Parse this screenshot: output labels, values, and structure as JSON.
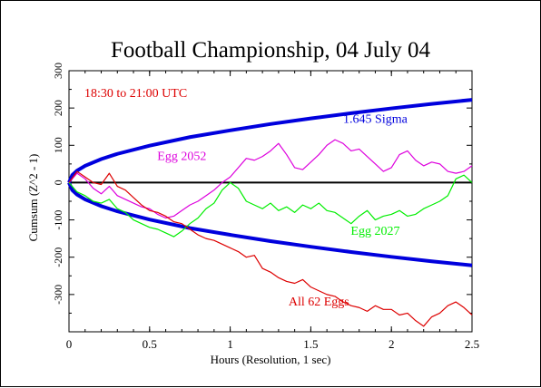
{
  "chart_data": {
    "type": "line",
    "title": "Football Championship, 04 July 04",
    "subtitle": "18:30 to 21:00 UTC",
    "xlabel": "Hours (Resolution, 1 sec)",
    "ylabel": "Cumsum (Z^2 - 1)",
    "xlim": [
      0,
      2.5
    ],
    "ylim": [
      -400,
      300
    ],
    "x_ticks": [
      "0",
      "0.5",
      "1",
      "1.5",
      "2",
      "2.5"
    ],
    "y_ticks": [
      "300",
      "200",
      "100",
      "0",
      "-100",
      "-200",
      "-300"
    ],
    "grid": false,
    "colors": {
      "sigma": "#0000dd",
      "egg2052": "#dd00dd",
      "egg2027": "#00ee00",
      "all62": "#dd0000",
      "zero": "#000000",
      "subtitle": "#dd0000"
    },
    "sigma_envelope": {
      "name": "1.645 Sigma",
      "x": [
        0,
        0.02,
        0.05,
        0.1,
        0.2,
        0.3,
        0.5,
        0.75,
        1.0,
        1.25,
        1.5,
        1.75,
        2.0,
        2.25,
        2.5
      ],
      "upper": [
        0,
        20,
        32,
        45,
        63,
        77,
        99,
        122,
        140,
        157,
        172,
        186,
        199,
        211,
        222
      ],
      "lower": [
        0,
        -20,
        -32,
        -45,
        -63,
        -77,
        -99,
        -122,
        -140,
        -157,
        -172,
        -186,
        -199,
        -211,
        -222
      ]
    },
    "series": [
      {
        "name": "Egg 2052",
        "color_key": "egg2052",
        "x": [
          0,
          0.05,
          0.1,
          0.15,
          0.2,
          0.25,
          0.3,
          0.35,
          0.4,
          0.45,
          0.5,
          0.55,
          0.6,
          0.65,
          0.7,
          0.75,
          0.8,
          0.85,
          0.9,
          0.95,
          1.0,
          1.05,
          1.1,
          1.15,
          1.2,
          1.25,
          1.3,
          1.35,
          1.4,
          1.45,
          1.5,
          1.55,
          1.6,
          1.65,
          1.7,
          1.75,
          1.8,
          1.85,
          1.9,
          1.95,
          2.0,
          2.05,
          2.1,
          2.15,
          2.2,
          2.25,
          2.3,
          2.35,
          2.4,
          2.45,
          2.5
        ],
        "y": [
          0,
          25,
          10,
          -15,
          -30,
          -10,
          -35,
          -45,
          -55,
          -65,
          -70,
          -85,
          -95,
          -90,
          -75,
          -60,
          -50,
          -35,
          -20,
          0,
          15,
          40,
          65,
          60,
          70,
          85,
          105,
          75,
          40,
          35,
          55,
          75,
          100,
          115,
          105,
          85,
          90,
          70,
          50,
          30,
          40,
          75,
          85,
          60,
          45,
          55,
          50,
          30,
          25,
          30,
          45
        ]
      },
      {
        "name": "Egg 2027",
        "color_key": "egg2027",
        "x": [
          0,
          0.05,
          0.1,
          0.15,
          0.2,
          0.25,
          0.3,
          0.35,
          0.4,
          0.45,
          0.5,
          0.55,
          0.6,
          0.65,
          0.7,
          0.75,
          0.8,
          0.85,
          0.9,
          0.95,
          1.0,
          1.05,
          1.1,
          1.15,
          1.2,
          1.25,
          1.3,
          1.35,
          1.4,
          1.45,
          1.5,
          1.55,
          1.6,
          1.65,
          1.7,
          1.75,
          1.8,
          1.85,
          1.9,
          1.95,
          2.0,
          2.05,
          2.1,
          2.15,
          2.2,
          2.25,
          2.3,
          2.35,
          2.4,
          2.45,
          2.5
        ],
        "y": [
          0,
          -25,
          -35,
          -50,
          -55,
          -45,
          -70,
          -80,
          -100,
          -110,
          -120,
          -125,
          -135,
          -145,
          -130,
          -110,
          -95,
          -70,
          -55,
          -20,
          0,
          -15,
          -50,
          -60,
          -70,
          -55,
          -75,
          -65,
          -80,
          -60,
          -70,
          -55,
          -75,
          -80,
          -95,
          -110,
          -90,
          -75,
          -100,
          -90,
          -85,
          -75,
          -90,
          -85,
          -70,
          -60,
          -50,
          -35,
          10,
          20,
          0
        ]
      },
      {
        "name": "All 62 Eggs",
        "color_key": "all62",
        "x": [
          0,
          0.05,
          0.1,
          0.15,
          0.2,
          0.25,
          0.3,
          0.35,
          0.4,
          0.45,
          0.5,
          0.55,
          0.6,
          0.65,
          0.7,
          0.75,
          0.8,
          0.85,
          0.9,
          0.95,
          1.0,
          1.05,
          1.1,
          1.15,
          1.2,
          1.25,
          1.3,
          1.35,
          1.4,
          1.45,
          1.5,
          1.55,
          1.6,
          1.65,
          1.7,
          1.75,
          1.8,
          1.85,
          1.9,
          1.95,
          2.0,
          2.05,
          2.1,
          2.15,
          2.2,
          2.25,
          2.3,
          2.35,
          2.4,
          2.45,
          2.5
        ],
        "y": [
          0,
          30,
          15,
          0,
          -5,
          25,
          -10,
          -20,
          -40,
          -60,
          -75,
          -80,
          -90,
          -105,
          -110,
          -125,
          -140,
          -150,
          -155,
          -165,
          -175,
          -185,
          -200,
          -195,
          -230,
          -240,
          -255,
          -265,
          -270,
          -260,
          -280,
          -290,
          -300,
          -305,
          -320,
          -330,
          -335,
          -345,
          -330,
          -340,
          -340,
          -355,
          -350,
          -370,
          -385,
          -360,
          -350,
          -330,
          -320,
          -335,
          -355
        ]
      }
    ],
    "annotations": [
      {
        "text": "1.645 Sigma",
        "color_key": "sigma",
        "x": 1.9,
        "y": 160
      },
      {
        "text": "Egg 2052",
        "color_key": "egg2052",
        "x": 0.7,
        "y": 60
      },
      {
        "text": "Egg 2027",
        "color_key": "egg2027",
        "x": 1.9,
        "y": -140
      },
      {
        "text": "All 62 Eggs",
        "color_key": "all62",
        "x": 1.55,
        "y": -330
      }
    ]
  }
}
